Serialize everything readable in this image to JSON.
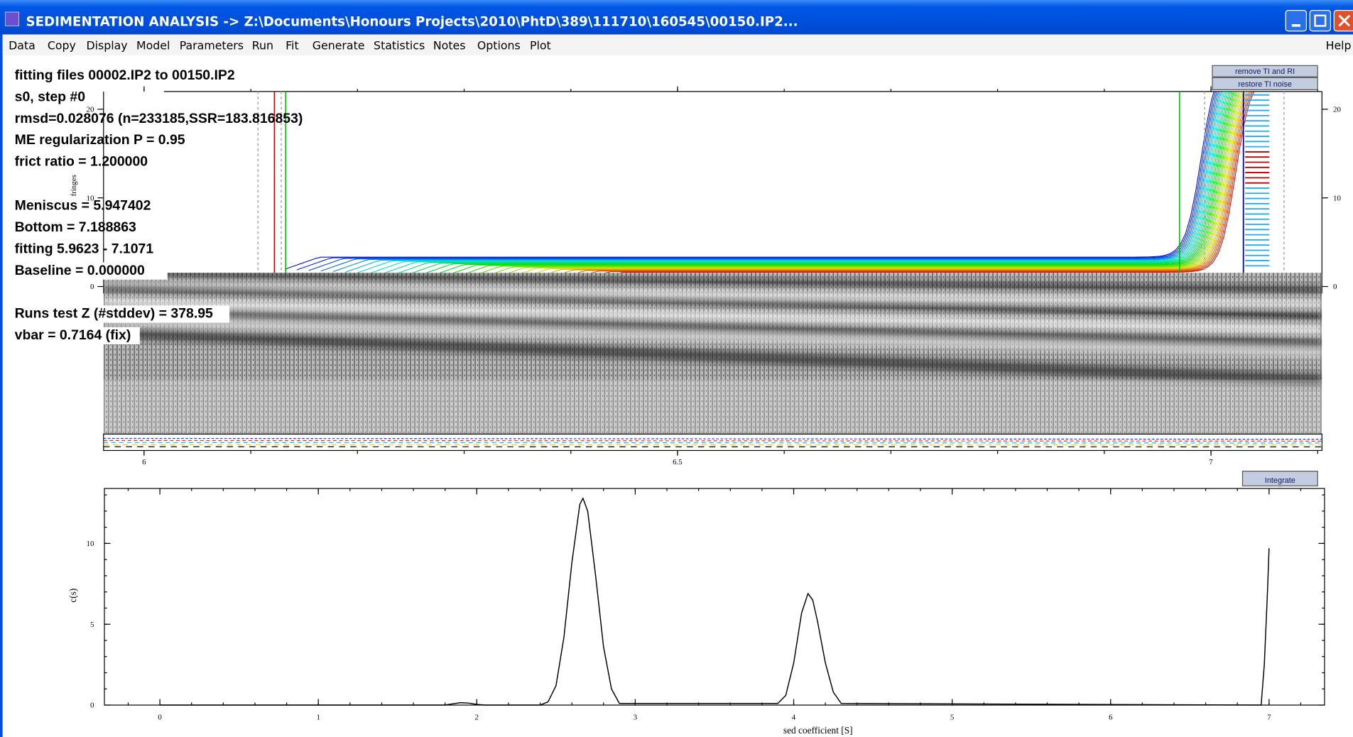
{
  "window": {
    "title": "SEDIMENTATION ANALYSIS -> Z:\\Documents\\Honours Projects\\2010\\PhtD\\389\\111710\\160545\\00150.IP2..."
  },
  "menu": {
    "items": [
      "Data",
      "Copy",
      "Display",
      "Model",
      "Parameters",
      "Run",
      "Fit",
      "Generate",
      "Statistics",
      "Notes",
      "Options",
      "Plot"
    ],
    "help": "Help"
  },
  "buttons": {
    "remove_ti_ri": "remove TI and RI",
    "restore_ti": "restore TI noise",
    "integrate": "Integrate"
  },
  "info": [
    "fitting files 00002.IP2 to 00150.IP2",
    "s0, step #0",
    "rmsd=0.028076 (n=233185,SSR=183.816853)",
    "ME regularization P = 0.95",
    "frict ratio = 1.200000",
    "Meniscus = 5.947402",
    "Bottom = 7.188863",
    "fitting 5.9623 - 7.1071",
    "Baseline = 0.000000",
    "Runs test Z (#stddev) = 378.95",
    "vbar = 0.7164 (fix)"
  ],
  "raw_plot": {
    "y_label": "fringes",
    "xlim": [
      5.962,
      7.104
    ],
    "xticks": [
      6,
      6.5,
      7
    ],
    "ylim": [
      0,
      22
    ],
    "yticks": [
      0,
      10,
      20
    ]
  },
  "cs_plot": {
    "type": "line",
    "x_label": "sed coefficient [S]",
    "y_label": "c(s)",
    "color": "#000000",
    "xlim": [
      -0.35,
      7.35
    ],
    "ylim": [
      0,
      13.4
    ],
    "xticks": [
      0,
      1,
      2,
      3,
      4,
      5,
      6,
      7
    ],
    "yticks": [
      0,
      5,
      10
    ],
    "x": [
      0,
      1.8,
      1.85,
      1.9,
      1.95,
      2.0,
      2.05,
      2.4,
      2.45,
      2.5,
      2.55,
      2.6,
      2.65,
      2.67,
      2.7,
      2.75,
      2.8,
      2.85,
      2.9,
      3.9,
      3.95,
      4.0,
      4.05,
      4.09,
      4.12,
      4.15,
      4.2,
      4.25,
      4.3,
      6.95,
      6.97,
      6.99,
      7.0
    ],
    "values": [
      0,
      0,
      0.08,
      0.15,
      0.12,
      0.04,
      0,
      0,
      0.2,
      1.2,
      4.2,
      8.8,
      12.4,
      12.8,
      12.0,
      8.0,
      3.6,
      1.0,
      0.1,
      0.1,
      0.6,
      2.6,
      5.7,
      6.9,
      6.5,
      5.2,
      2.6,
      0.8,
      0.1,
      0,
      2.5,
      7.0,
      9.7
    ]
  }
}
